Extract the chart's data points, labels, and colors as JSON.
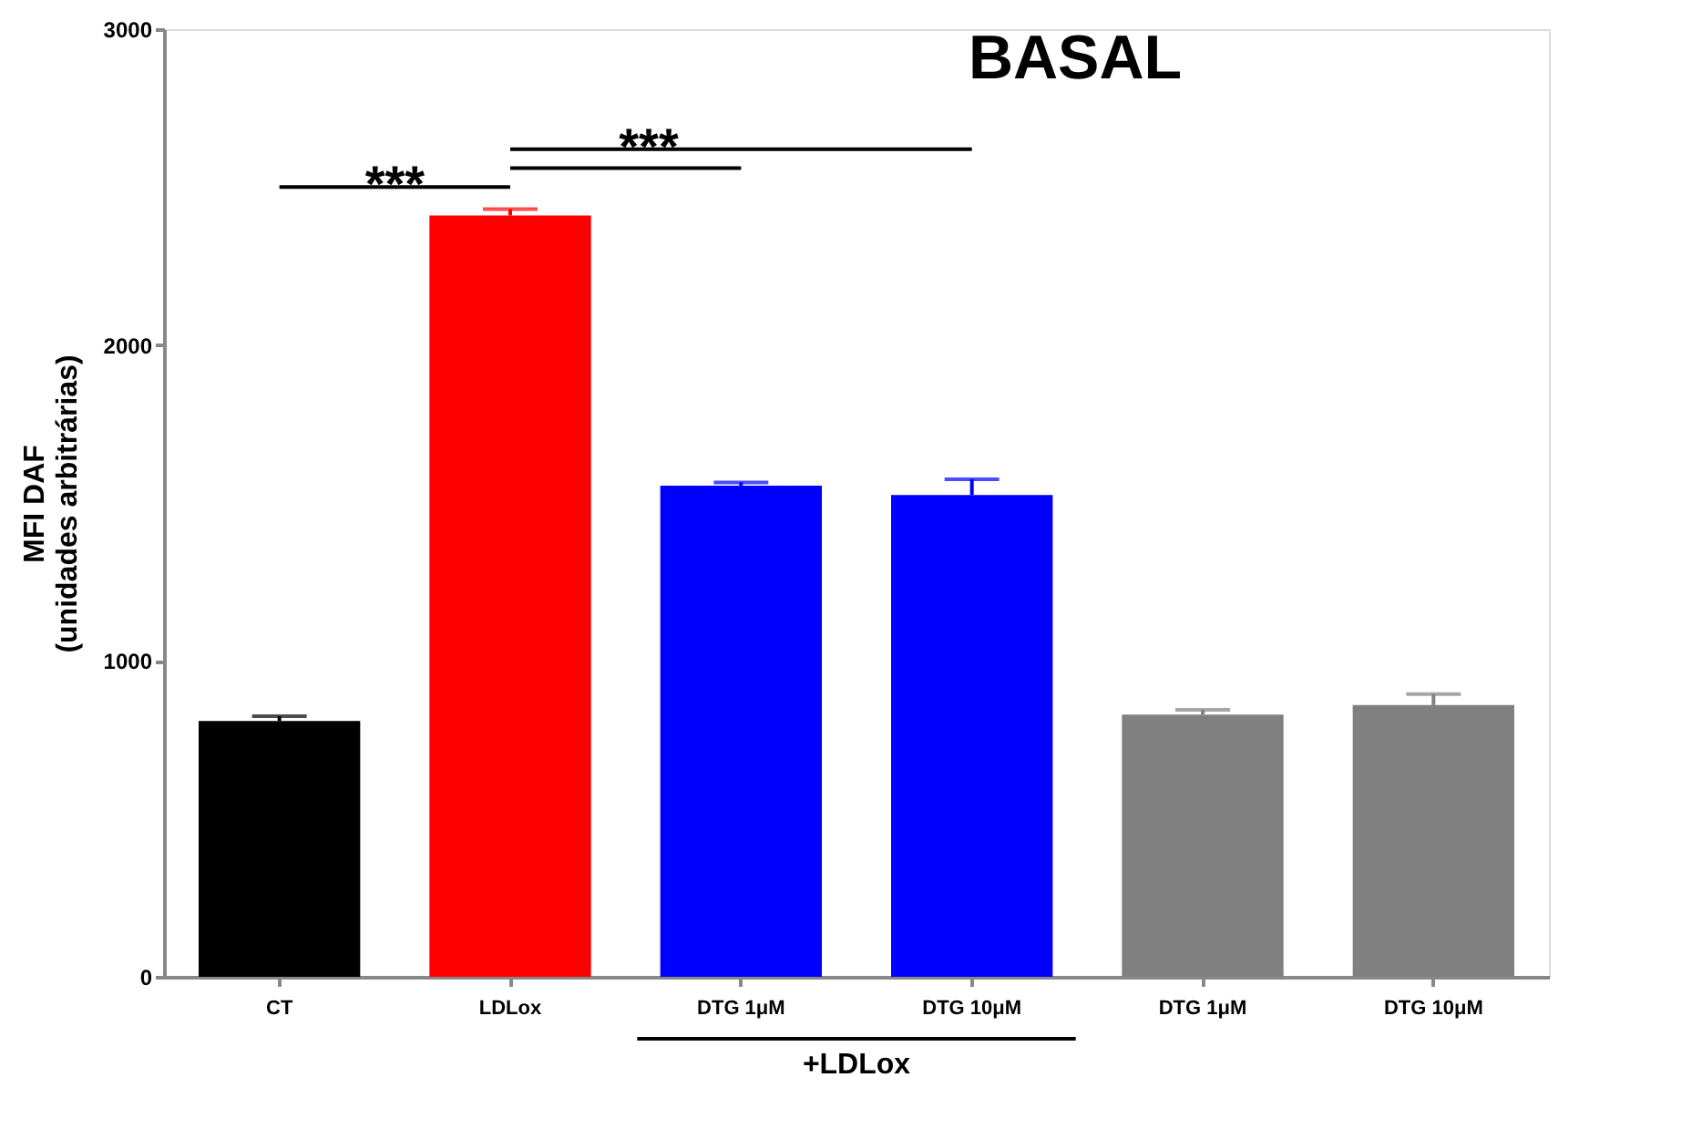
{
  "chart_data": {
    "type": "bar",
    "title": "BASAL",
    "ylabel": "MFI DAF\n(unidades arbitrárias)",
    "categories": [
      "CT",
      "LDLox",
      "DTG 1μM",
      "DTG 10μM",
      "DTG 1μM",
      "DTG 10μM"
    ],
    "values": [
      810,
      2410,
      1555,
      1525,
      830,
      860
    ],
    "colors": [
      "#000000",
      "#ff0000",
      "#0000ff",
      "#0000ff",
      "#808080",
      "#808080"
    ],
    "errors": [
      [
        810,
        825
      ],
      [
        2410,
        2430
      ],
      [
        1555,
        1565
      ],
      [
        1525,
        1575
      ],
      [
        830,
        845
      ],
      [
        860,
        895
      ]
    ],
    "ylim": [
      0,
      3000
    ],
    "yticks": [
      0,
      1000,
      2000,
      3000
    ],
    "grid": false,
    "annotations": [
      "***",
      "***",
      "+LDLox"
    ]
  }
}
